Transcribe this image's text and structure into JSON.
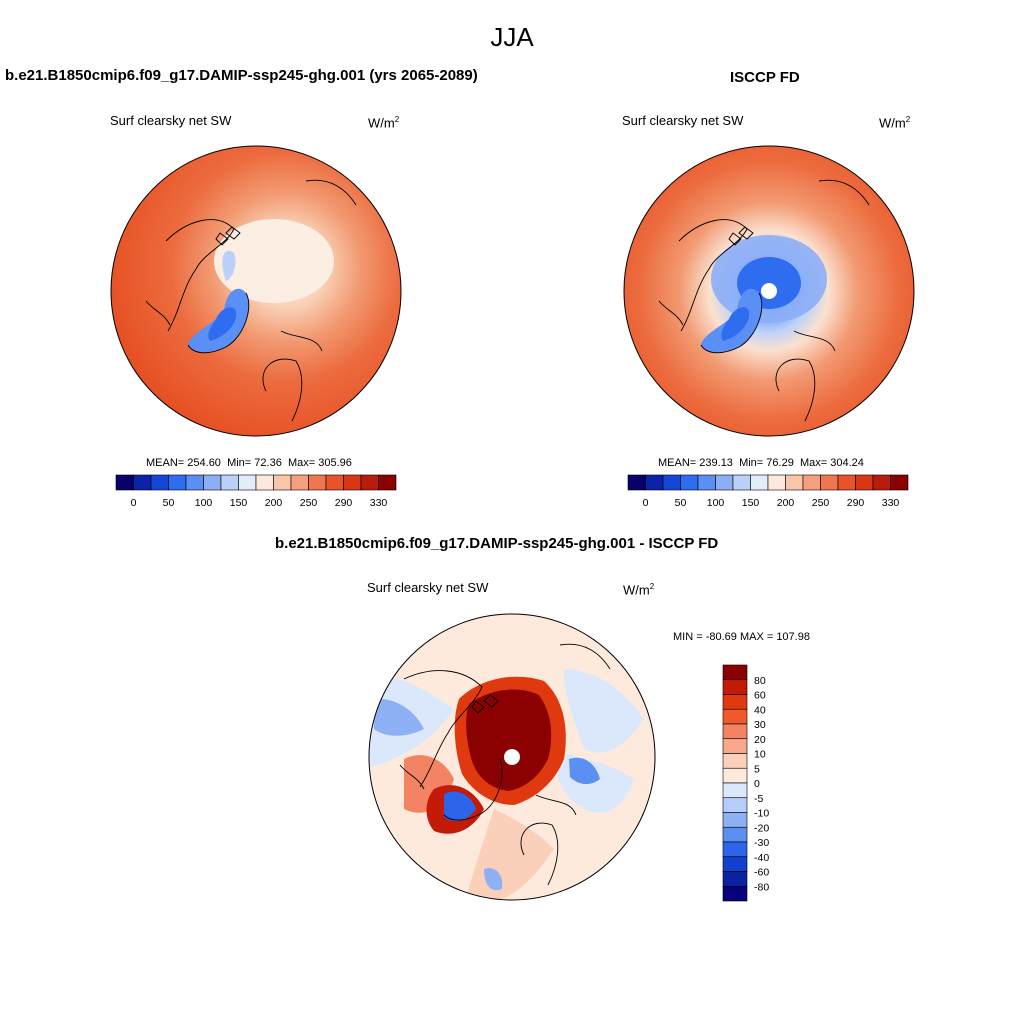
{
  "figure": {
    "title": "JJA"
  },
  "panels": [
    {
      "title": "b.e21.B1850cmip6.f09_g17.DAMIP-ssp245-ghg.001 (yrs 2065-2089)",
      "variable": "Surf clearsky net SW",
      "units_base": "W/m",
      "units_exp": "2",
      "stats": {
        "mean_label": "MEAN=",
        "mean": "254.60",
        "min_label": "Min=",
        "min": "72.36",
        "max_label": "Max=",
        "max": "305.96"
      }
    },
    {
      "title": "ISCCP FD",
      "variable": "Surf clearsky net SW",
      "units_base": "W/m",
      "units_exp": "2",
      "stats": {
        "mean_label": "MEAN=",
        "mean": "239.13",
        "min_label": "Min=",
        "min": "76.29",
        "max_label": "Max=",
        "max": "304.24"
      }
    },
    {
      "title": "b.e21.B1850cmip6.f09_g17.DAMIP-ssp245-ghg.001 - ISCCP FD",
      "variable": "Surf clearsky net SW",
      "units_base": "W/m",
      "units_exp": "2",
      "stats_text": "MIN = -80.69 MAX = 107.98"
    }
  ],
  "colorbars": {
    "abs": {
      "colors": [
        "#08006b",
        "#0a23a8",
        "#1446d6",
        "#2f6df0",
        "#5a8ff5",
        "#8caef7",
        "#bcd1f9",
        "#e3ecfb",
        "#fde9dc",
        "#f9c6aa",
        "#f4a07c",
        "#f0764f",
        "#e85329",
        "#d93616",
        "#b81d0c",
        "#8b0000"
      ],
      "labels": [
        "0",
        "50",
        "100",
        "150",
        "200",
        "250",
        "290",
        "330"
      ]
    },
    "diff": {
      "colors": [
        "#8b0000",
        "#c41a08",
        "#e0390f",
        "#ef5a2c",
        "#f48363",
        "#f8a98c",
        "#fbd0bb",
        "#fdeadc",
        "#dbe8fb",
        "#b5cdf8",
        "#8eb1f6",
        "#5c8ff2",
        "#2c64ea",
        "#1240cc",
        "#0a22a0",
        "#06007a"
      ],
      "labels": [
        "80",
        "60",
        "40",
        "30",
        "20",
        "10",
        "5",
        "0",
        "-5",
        "-10",
        "-20",
        "-30",
        "-40",
        "-60",
        "-80"
      ]
    }
  }
}
